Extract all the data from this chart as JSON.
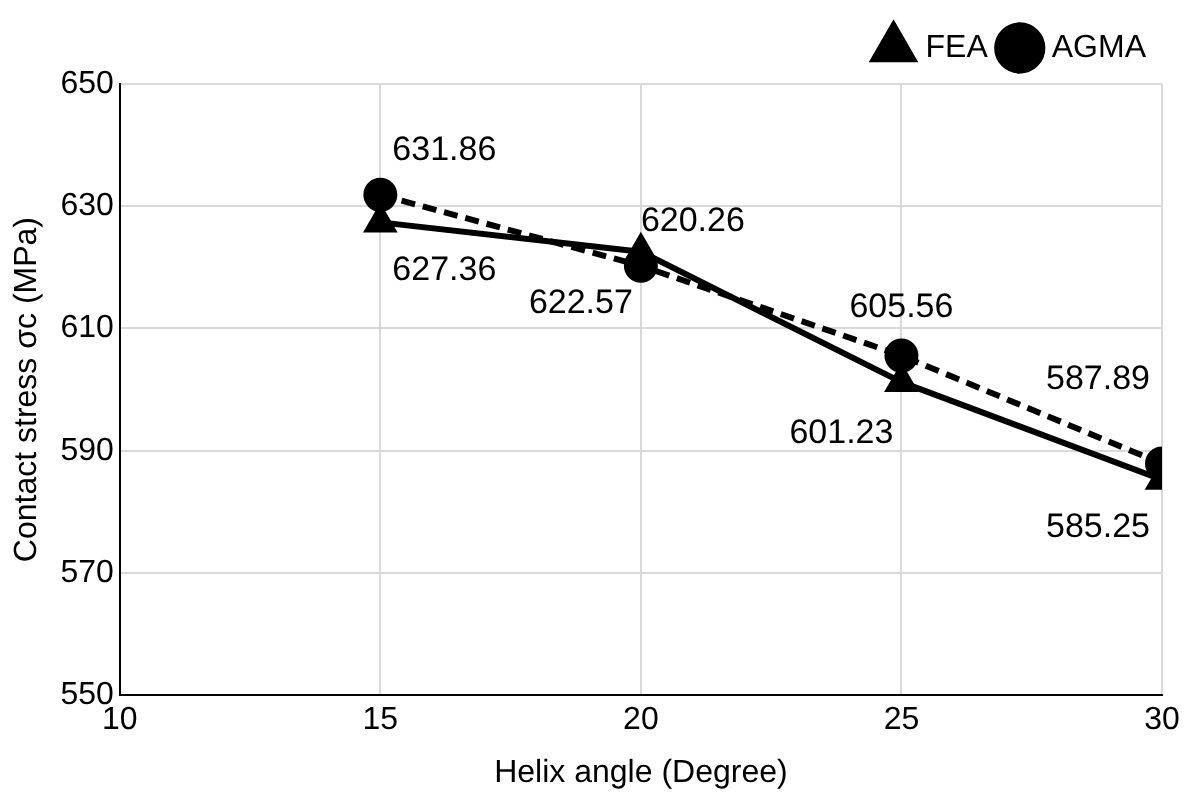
{
  "chart_data": {
    "type": "line",
    "xlabel": "Helix angle (Degree)",
    "ylabel": "Contact stress σc (MPa)",
    "x": [
      15,
      20,
      25,
      30
    ],
    "series": [
      {
        "name": "FEA",
        "color": "#000000",
        "values": [
          627.36,
          622.57,
          601.23,
          585.25
        ],
        "marker": "triangle",
        "line_style": "solid"
      },
      {
        "name": "AGMA",
        "color": "#000000",
        "values": [
          631.86,
          620.26,
          605.56,
          587.89
        ],
        "marker": "circle",
        "line_style": "dashed"
      }
    ],
    "xlim": [
      10,
      30
    ],
    "xticks": [
      10,
      15,
      20,
      25,
      30
    ],
    "ylim": [
      550,
      650
    ],
    "yticks": [
      550,
      570,
      590,
      610,
      630,
      650
    ],
    "grid": true,
    "legend": "top right",
    "data_labels": true
  }
}
